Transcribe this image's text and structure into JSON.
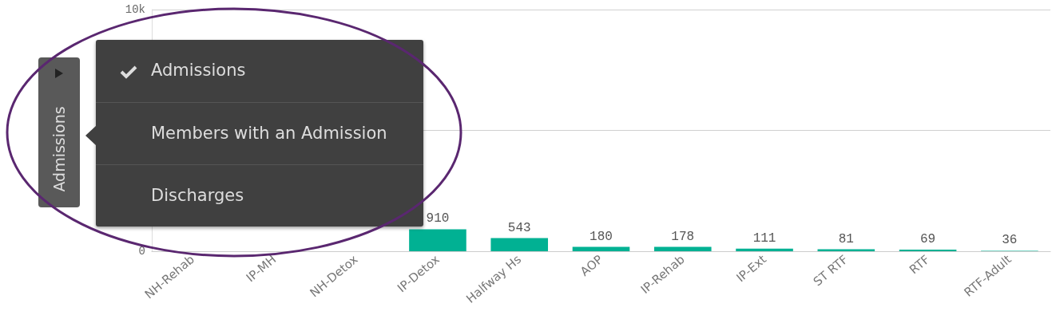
{
  "chart_data": {
    "type": "bar",
    "categories": [
      "NH-Rehab",
      "IP-MH",
      "NH-Detox",
      "IP-Detox",
      "Halfway Hs",
      "AOP",
      "IP-Rehab",
      "IP-Ext",
      "ST RTF",
      "RTF",
      "RTF-Adult"
    ],
    "values": [
      null,
      null,
      null,
      910,
      543,
      180,
      178,
      111,
      81,
      69,
      36
    ],
    "colors": [
      "#01b193",
      "#01b193",
      "#01b193",
      "#01b193",
      "#01b193",
      "#01b193",
      "#01b193",
      "#01b193",
      "#01b193",
      "#01b193",
      "#80d8c9"
    ],
    "data_labels": true,
    "ylim": [
      0,
      10000
    ],
    "yticks": [
      0,
      {
        "value": 5000,
        "label": null
      },
      {
        "value": 10000,
        "label": "10k"
      }
    ],
    "grid": "y",
    "annotations": [
      "Admissions",
      "Admissions",
      "Members with an Admission",
      "Discharges"
    ]
  }
}
